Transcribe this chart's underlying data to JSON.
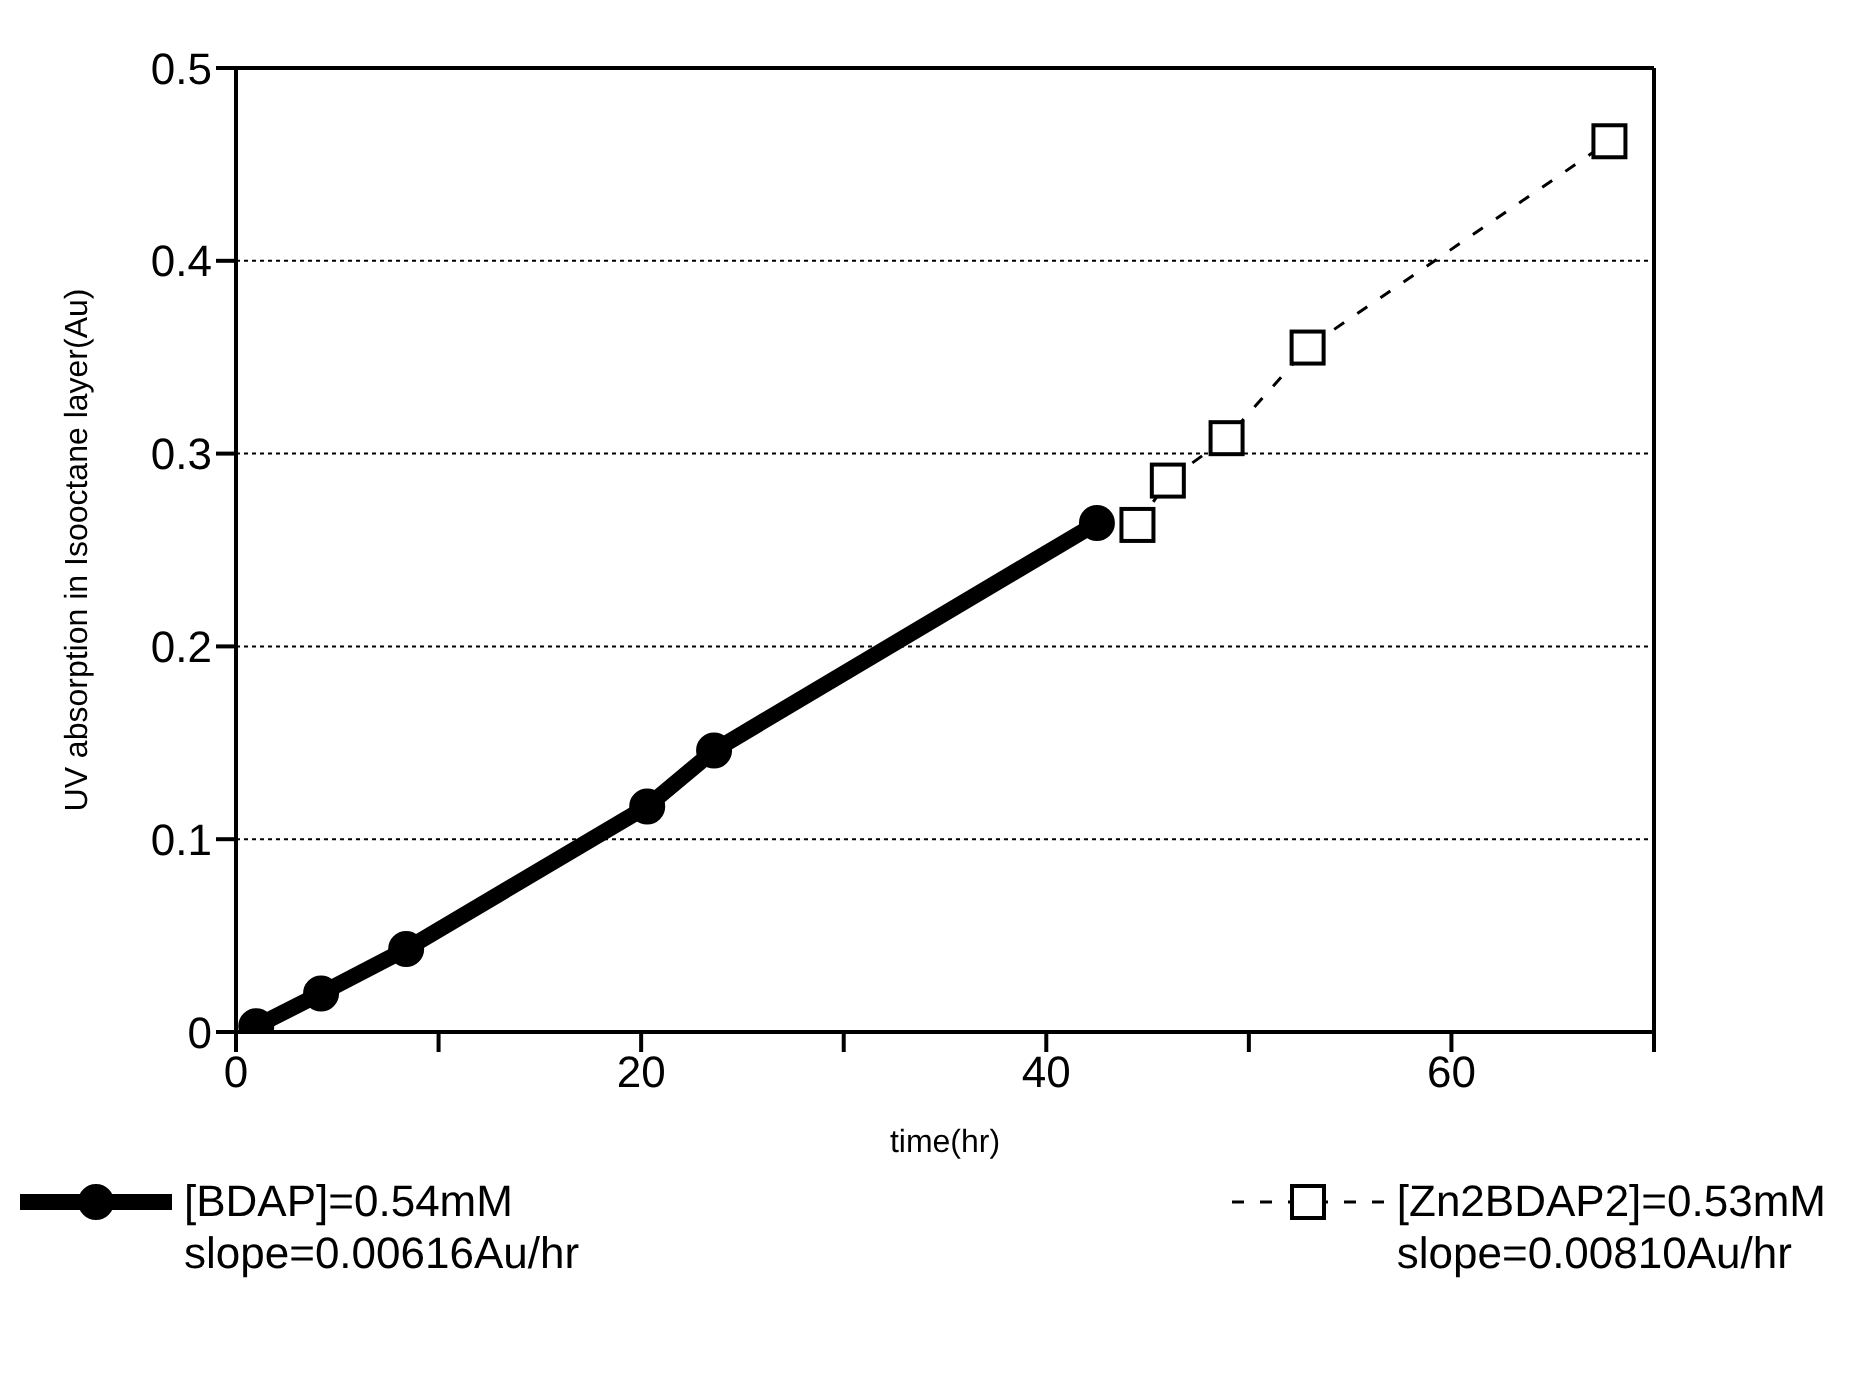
{
  "chart_data": {
    "type": "line",
    "xlabel": "time(hr)",
    "ylabel": "UV absorption in Isooctane layer(Au)",
    "xlim": [
      0,
      70
    ],
    "xticks": [
      0,
      {
        "value": 10,
        "label": null
      },
      20,
      {
        "value": 30,
        "label": null
      },
      40,
      {
        "value": 50,
        "label": null
      },
      60,
      {
        "value": 70,
        "label": null
      }
    ],
    "ylim": [
      0,
      0.5
    ],
    "yticks": [
      0,
      0.1,
      0.2,
      0.3,
      0.4,
      0.5
    ],
    "grid": "y",
    "legend": "bottom",
    "series": [
      {
        "name": "[BDAP]=0.54mM",
        "color": "#000000",
        "marker": "circle",
        "line_style": "solid",
        "x": [
          1.0,
          4.2,
          8.4,
          20.3,
          23.6,
          42.5
        ],
        "values": [
          0.003,
          0.02,
          0.043,
          0.117,
          0.146,
          0.264
        ]
      },
      {
        "name": "[Zn2BDAP2]=0.53mM",
        "color": "#000000",
        "marker": "square",
        "line_style": "dashed",
        "x": [
          44.5,
          46.0,
          48.9,
          52.9,
          67.8
        ],
        "values": [
          0.263,
          0.286,
          0.308,
          0.355,
          0.462
        ]
      }
    ],
    "annotations": [
      "slope=0.00616Au/hr",
      "slope=0.00810Au/hr"
    ]
  }
}
